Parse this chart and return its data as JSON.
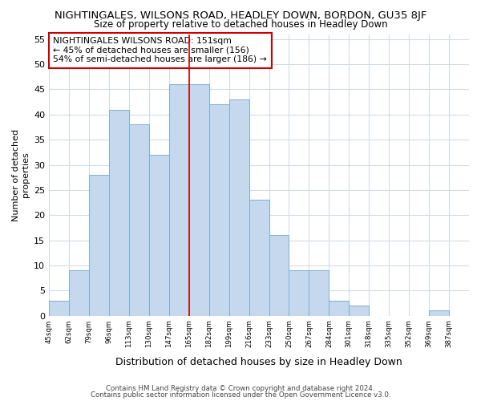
{
  "title": "NIGHTINGALES, WILSONS ROAD, HEADLEY DOWN, BORDON, GU35 8JF",
  "subtitle": "Size of property relative to detached houses in Headley Down",
  "xlabel": "Distribution of detached houses by size in Headley Down",
  "ylabel": "Number of detached\nproperties",
  "bar_color": "#c5d8ee",
  "bar_edge_color": "#7bafd4",
  "background_color": "#ffffff",
  "grid_color": "#d0dce8",
  "bin_labels": [
    "45sqm",
    "62sqm",
    "79sqm",
    "96sqm",
    "113sqm",
    "130sqm",
    "147sqm",
    "165sqm",
    "182sqm",
    "199sqm",
    "216sqm",
    "233sqm",
    "250sqm",
    "267sqm",
    "284sqm",
    "301sqm",
    "318sqm",
    "335sqm",
    "352sqm",
    "369sqm",
    "387sqm"
  ],
  "bar_heights": [
    3,
    9,
    28,
    41,
    38,
    32,
    46,
    46,
    42,
    43,
    23,
    16,
    9,
    9,
    3,
    2,
    0,
    0,
    0,
    1,
    0
  ],
  "ylim": [
    0,
    56
  ],
  "yticks": [
    0,
    5,
    10,
    15,
    20,
    25,
    30,
    35,
    40,
    45,
    50,
    55
  ],
  "marker_bin_index": 7,
  "marker_color": "#cc0000",
  "annotation_title": "NIGHTINGALES WILSONS ROAD: 151sqm",
  "annotation_line1": "← 45% of detached houses are smaller (156)",
  "annotation_line2": "54% of semi-detached houses are larger (186) →",
  "annotation_box_facecolor": "#ffffff",
  "annotation_box_edgecolor": "#cc0000",
  "footer1": "Contains HM Land Registry data © Crown copyright and database right 2024.",
  "footer2": "Contains public sector information licensed under the Open Government Licence v3.0."
}
